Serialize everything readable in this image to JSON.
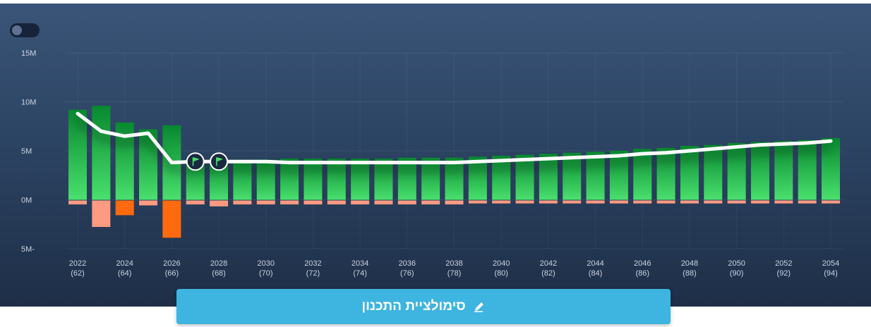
{
  "toggle": {
    "state": "off"
  },
  "cta_button": {
    "label": "סימולציית התכנון",
    "icon": "pencil-icon"
  },
  "colors": {
    "positive_top": "#07882f",
    "positive_bottom": "#4ae06e",
    "negative_dark": "#ff6a0e",
    "negative_light": "#ff9a82",
    "line": "#ffffff",
    "button": "#3db5e0"
  },
  "chart_data": {
    "type": "bar",
    "title": "",
    "xlabel": "",
    "ylabel": "",
    "ylim": [
      -5000000,
      15000000
    ],
    "y_ticks": [
      {
        "value": 15000000,
        "label": "15M"
      },
      {
        "value": 10000000,
        "label": "10M"
      },
      {
        "value": 5000000,
        "label": "5M"
      },
      {
        "value": 0,
        "label": "0M"
      },
      {
        "value": -5000000,
        "label": "5M-"
      }
    ],
    "categories": [
      "2022",
      "2023",
      "2024",
      "2025",
      "2026",
      "2027",
      "2028",
      "2029",
      "2030",
      "2031",
      "2032",
      "2033",
      "2034",
      "2035",
      "2036",
      "2037",
      "2038",
      "2039",
      "2040",
      "2041",
      "2042",
      "2043",
      "2044",
      "2045",
      "2046",
      "2047",
      "2048",
      "2049",
      "2050",
      "2051",
      "2052",
      "2053",
      "2054"
    ],
    "x_tick_labels": [
      {
        "year": "2022",
        "age": "(62)"
      },
      {
        "year": "2024",
        "age": "(64)"
      },
      {
        "year": "2026",
        "age": "(66)"
      },
      {
        "year": "2028",
        "age": "(68)"
      },
      {
        "year": "2030",
        "age": "(70)"
      },
      {
        "year": "2032",
        "age": "(72)"
      },
      {
        "year": "2034",
        "age": "(74)"
      },
      {
        "year": "2036",
        "age": "(76)"
      },
      {
        "year": "2038",
        "age": "(78)"
      },
      {
        "year": "2040",
        "age": "(80)"
      },
      {
        "year": "2042",
        "age": "(82)"
      },
      {
        "year": "2044",
        "age": "(84)"
      },
      {
        "year": "2046",
        "age": "(86)"
      },
      {
        "year": "2048",
        "age": "(88)"
      },
      {
        "year": "2050",
        "age": "(90)"
      },
      {
        "year": "2052",
        "age": "(92)"
      },
      {
        "year": "2054",
        "age": "(94)"
      }
    ],
    "series": [
      {
        "kind": "bar_positive",
        "values": [
          9200000,
          9600000,
          7900000,
          7200000,
          7600000,
          4100000,
          4100000,
          4100000,
          4100000,
          4200000,
          4200000,
          4200000,
          4200000,
          4200000,
          4300000,
          4300000,
          4300000,
          4400000,
          4500000,
          4600000,
          4700000,
          4800000,
          4900000,
          5000000,
          5200000,
          5300000,
          5500000,
          5600000,
          5800000,
          5900000,
          6000000,
          6100000,
          6300000
        ]
      },
      {
        "kind": "bar_negative",
        "values": [
          -400000,
          -2700000,
          -1500000,
          -500000,
          -3800000,
          -400000,
          -600000,
          -400000,
          -400000,
          -400000,
          -400000,
          -400000,
          -400000,
          -400000,
          -400000,
          -400000,
          -400000,
          -300000,
          -300000,
          -300000,
          -300000,
          -300000,
          -300000,
          -300000,
          -300000,
          -300000,
          -300000,
          -300000,
          -300000,
          -300000,
          -300000,
          -300000,
          -300000
        ]
      },
      {
        "kind": "line",
        "values": [
          8800000,
          7000000,
          6500000,
          6800000,
          3800000,
          3900000,
          3900000,
          3900000,
          3900000,
          3800000,
          3800000,
          3800000,
          3800000,
          3800000,
          3800000,
          3800000,
          3800000,
          3900000,
          4000000,
          4100000,
          4200000,
          4300000,
          4400000,
          4500000,
          4700000,
          4800000,
          5000000,
          5200000,
          5400000,
          5600000,
          5700000,
          5800000,
          6000000
        ]
      }
    ],
    "flag_markers": [
      {
        "category": "2027",
        "icon": "flag-icon"
      },
      {
        "category": "2028",
        "icon": "flag-icon"
      }
    ],
    "grid": true,
    "legend": "none"
  }
}
